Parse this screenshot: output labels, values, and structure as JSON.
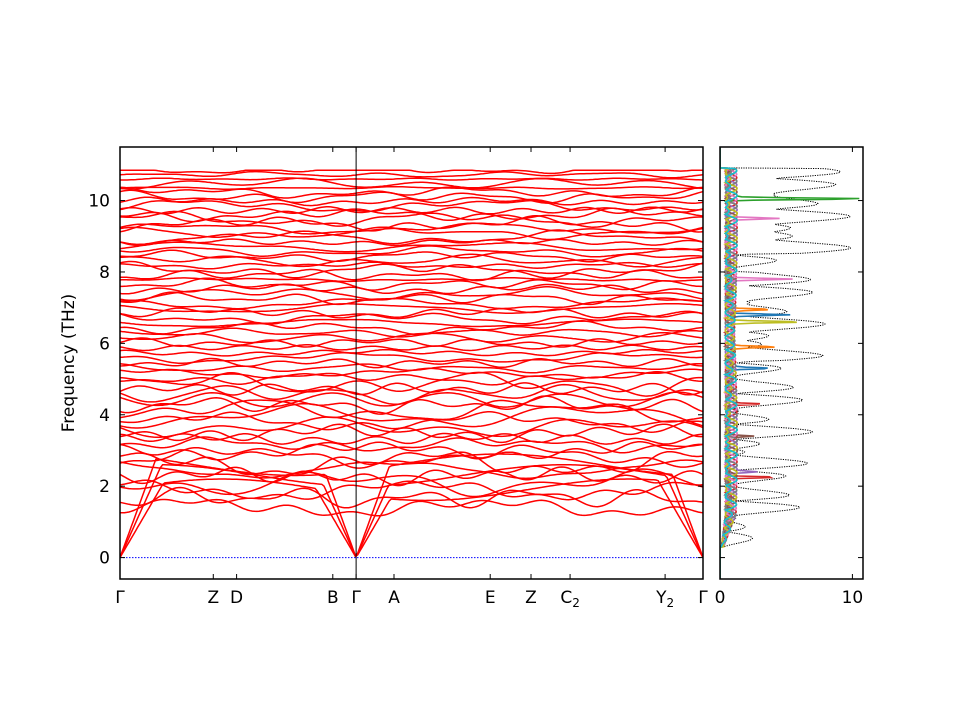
{
  "chart_data": [
    {
      "type": "line",
      "title": "",
      "ylabel": "Frequency (THz)",
      "xlabel": "",
      "ylim": [
        -0.6,
        11.5
      ],
      "y_ticks": [
        0,
        2,
        4,
        6,
        8,
        10
      ],
      "y_tick_labels": [
        "0",
        "2",
        "4",
        "6",
        "8",
        "10"
      ],
      "high_symmetry_labels": [
        {
          "label": "Γ",
          "sub": "",
          "x": 0.0
        },
        {
          "label": "Z",
          "sub": "",
          "x": 0.16
        },
        {
          "label": "D",
          "sub": "",
          "x": 0.2
        },
        {
          "label": "B",
          "sub": "",
          "x": 0.365
        },
        {
          "label": "Γ",
          "sub": "",
          "x": 0.405
        },
        {
          "label": "A",
          "sub": "",
          "x": 0.47
        },
        {
          "label": "E",
          "sub": "",
          "x": 0.635
        },
        {
          "label": "Z",
          "sub": "",
          "x": 0.705
        },
        {
          "label": "C",
          "sub": "2",
          "x": 0.772
        },
        {
          "label": "Y",
          "sub": "2",
          "x": 0.935
        },
        {
          "label": "Γ",
          "sub": "",
          "x": 1.0
        }
      ],
      "band_color": "#ff0000",
      "zero_line_color": "#0000ff",
      "acoustic_gamma_limit": [
        0.0,
        0.0
      ],
      "optical_frequency_range": [
        1.4,
        10.85
      ],
      "series_note_shown": false
    },
    {
      "type": "line",
      "title": "",
      "xlabel": "",
      "ylabel": "",
      "xlim": [
        0,
        10.8
      ],
      "ylim": [
        -0.6,
        11.5
      ],
      "x_ticks": [
        0,
        10
      ],
      "x_tick_labels": [
        "0",
        "10"
      ],
      "total_dos_color": "#000000",
      "projected_colors": [
        "#1f77b4",
        "#ff7f0e",
        "#2ca02c",
        "#d62728",
        "#9467bd",
        "#8c564b",
        "#e377c2",
        "#7f7f7f",
        "#bcbd22",
        "#17becf"
      ],
      "peaks": [
        {
          "f": 10.05,
          "v": 10.6,
          "series": 2
        },
        {
          "f": 9.5,
          "v": 4.5,
          "series": 6
        },
        {
          "f": 7.8,
          "v": 5.5,
          "series": 6
        },
        {
          "f": 6.8,
          "v": 4.8,
          "series": 0
        },
        {
          "f": 6.6,
          "v": 5.8,
          "series": 8
        },
        {
          "f": 6.95,
          "v": 3.6,
          "series": 1
        },
        {
          "f": 5.9,
          "v": 3.7,
          "series": 1
        },
        {
          "f": 5.3,
          "v": 3.4,
          "series": 0
        },
        {
          "f": 4.3,
          "v": 3.0,
          "series": 3
        },
        {
          "f": 2.25,
          "v": 4.3,
          "series": 3
        },
        {
          "f": 2.4,
          "v": 2.3,
          "series": 4
        },
        {
          "f": 3.4,
          "v": 2.5,
          "series": 5
        }
      ]
    }
  ]
}
